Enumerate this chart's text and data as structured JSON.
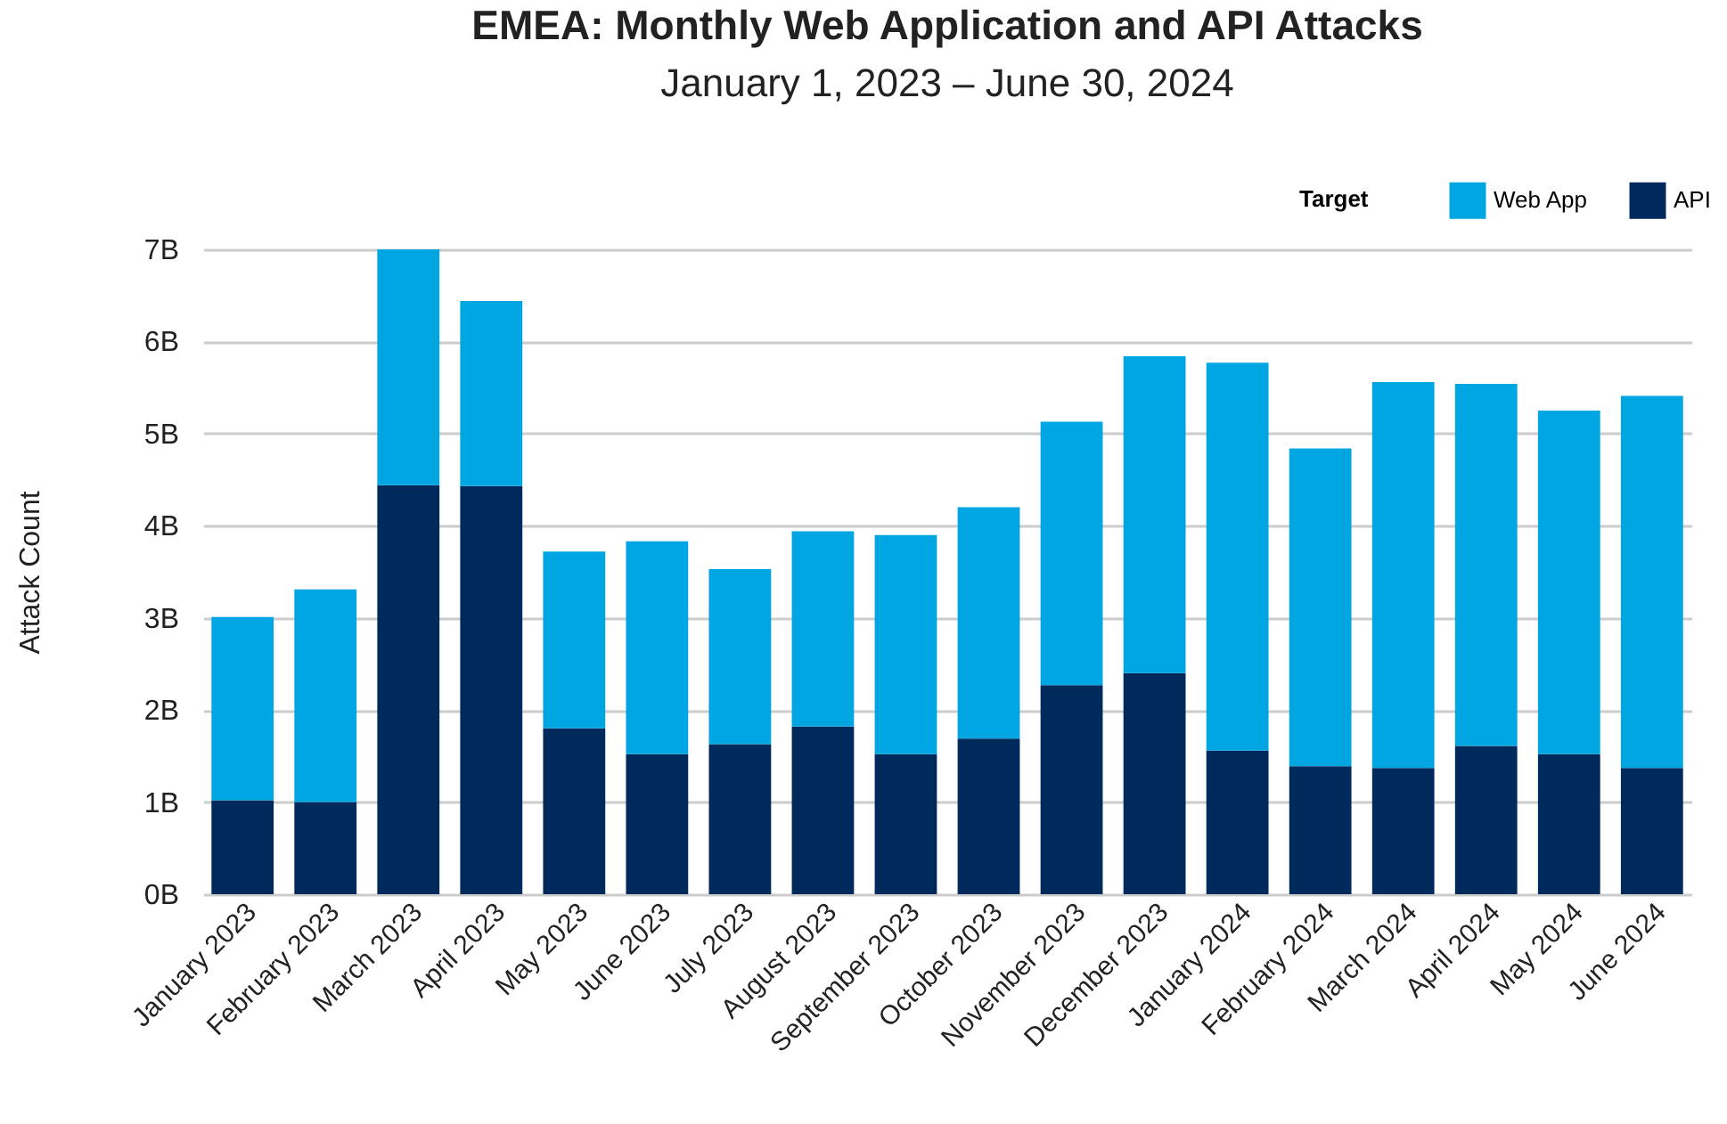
{
  "chart_data": {
    "type": "bar",
    "title": "EMEA: Monthly Web Application and API Attacks",
    "subtitle": "January 1, 2023 – June 30, 2024",
    "ylabel": "Attack Count",
    "legend_title": "Target",
    "categories": [
      "January 2023",
      "February 2023",
      "March 2023",
      "April 2023",
      "May 2023",
      "June 2023",
      "July 2023",
      "August 2023",
      "September 2023",
      "October 2023",
      "November 2023",
      "December 2023",
      "January 2024",
      "February 2024",
      "March 2024",
      "April 2024",
      "May 2024",
      "June 2024"
    ],
    "stacked": true,
    "series": [
      {
        "name": "API",
        "color": "#00295c",
        "values": [
          1.02,
          1.0,
          4.44,
          4.43,
          1.8,
          1.52,
          1.63,
          1.82,
          1.52,
          1.69,
          2.27,
          2.4,
          1.56,
          1.39,
          1.37,
          1.61,
          1.52,
          1.37
        ]
      },
      {
        "name": "Web App",
        "color": "#00a6e2",
        "values": [
          1.99,
          2.31,
          2.56,
          2.01,
          1.92,
          2.31,
          1.9,
          2.12,
          2.38,
          2.51,
          2.86,
          3.44,
          4.21,
          3.45,
          4.19,
          3.93,
          3.73,
          4.04
        ]
      }
    ],
    "ylim": [
      0,
      7
    ],
    "yticks": [
      {
        "value": 0,
        "label": "0B"
      },
      {
        "value": 1,
        "label": "1B"
      },
      {
        "value": 2,
        "label": "2B"
      },
      {
        "value": 3,
        "label": "3B"
      },
      {
        "value": 4,
        "label": "4B"
      },
      {
        "value": 5,
        "label": "5B"
      },
      {
        "value": 6,
        "label": "6B"
      },
      {
        "value": 7,
        "label": "7B"
      }
    ],
    "grid": "y",
    "legend": "top right"
  }
}
